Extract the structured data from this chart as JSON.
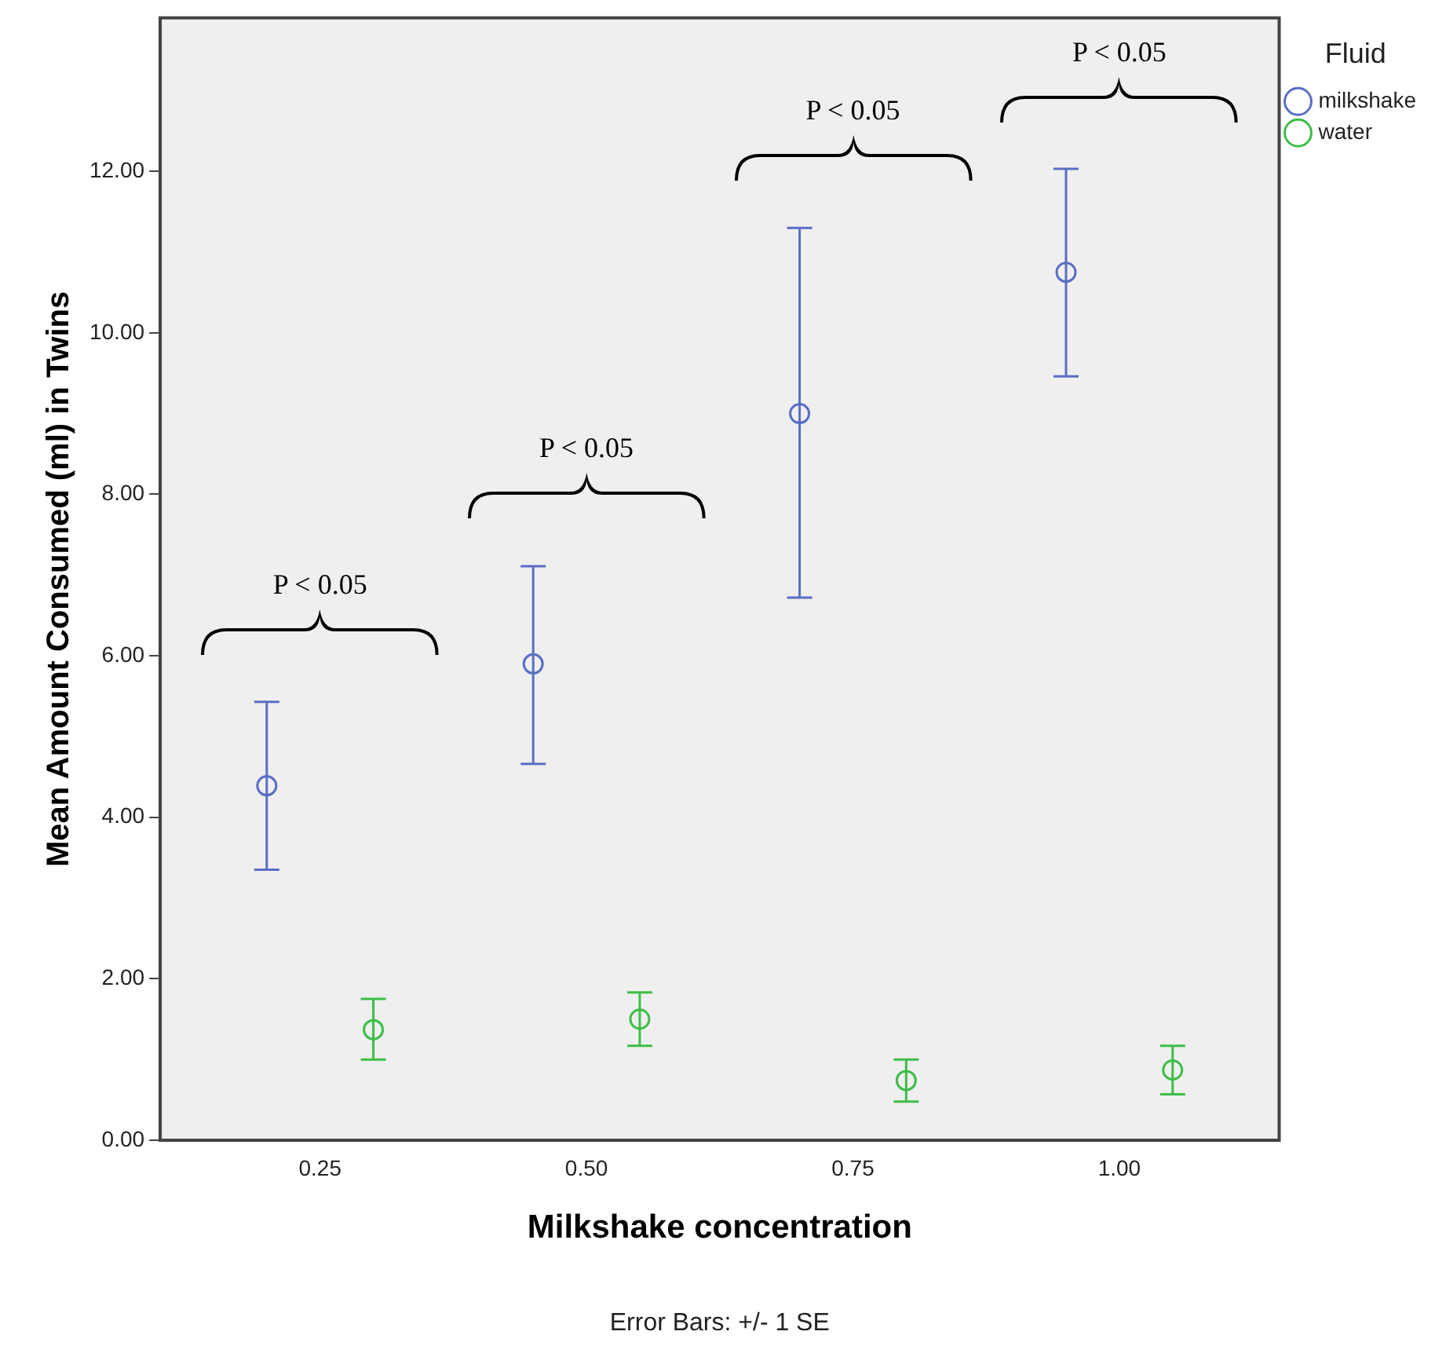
{
  "chart_data": {
    "type": "scatter",
    "xlabel": "Milkshake concentration",
    "ylabel": "Mean Amount Consumed (ml) in Twins",
    "legend_title": "Fluid",
    "legend": "top right",
    "marker": "circle",
    "grid": false,
    "xlim": [
      0.1,
      1.15
    ],
    "xticks": [
      {
        "value": 0.25,
        "label": "0.25"
      },
      {
        "value": 0.5,
        "label": "0.50"
      },
      {
        "value": 0.75,
        "label": "0.75"
      },
      {
        "value": 1,
        "label": "1.00"
      }
    ],
    "ylim": [
      0,
      13.9
    ],
    "yticks": [
      {
        "value": 0,
        "label": "0.00"
      },
      {
        "value": 2,
        "label": "2.00"
      },
      {
        "value": 4,
        "label": "4.00"
      },
      {
        "value": 6,
        "label": "6.00"
      },
      {
        "value": 8,
        "label": "8.00"
      },
      {
        "value": 10,
        "label": "10.00"
      },
      {
        "value": 12,
        "label": "12.00"
      }
    ],
    "series": [
      {
        "name": "milkshake",
        "color": "#5a6ec4",
        "x": [
          0.2,
          0.45,
          0.7,
          0.95
        ],
        "values": [
          4.39,
          5.9,
          9.0,
          10.75
        ],
        "errors": [
          [
            3.35,
            5.43
          ],
          [
            4.66,
            7.11
          ],
          [
            6.72,
            11.3
          ],
          [
            9.46,
            12.03
          ]
        ]
      },
      {
        "name": "water",
        "color": "#3cbe46",
        "x": [
          0.3,
          0.55,
          0.8,
          1.05
        ],
        "values": [
          1.37,
          1.5,
          0.74,
          0.87
        ],
        "errors": [
          [
            1.0,
            1.75
          ],
          [
            1.17,
            1.83
          ],
          [
            0.48,
            1.0
          ],
          [
            0.57,
            1.17
          ]
        ]
      }
    ],
    "annotations": [
      "P < 0.05",
      "P < 0.05",
      "P < 0.05",
      "P < 0.05",
      "Error Bars: +/- 1 SE"
    ]
  }
}
